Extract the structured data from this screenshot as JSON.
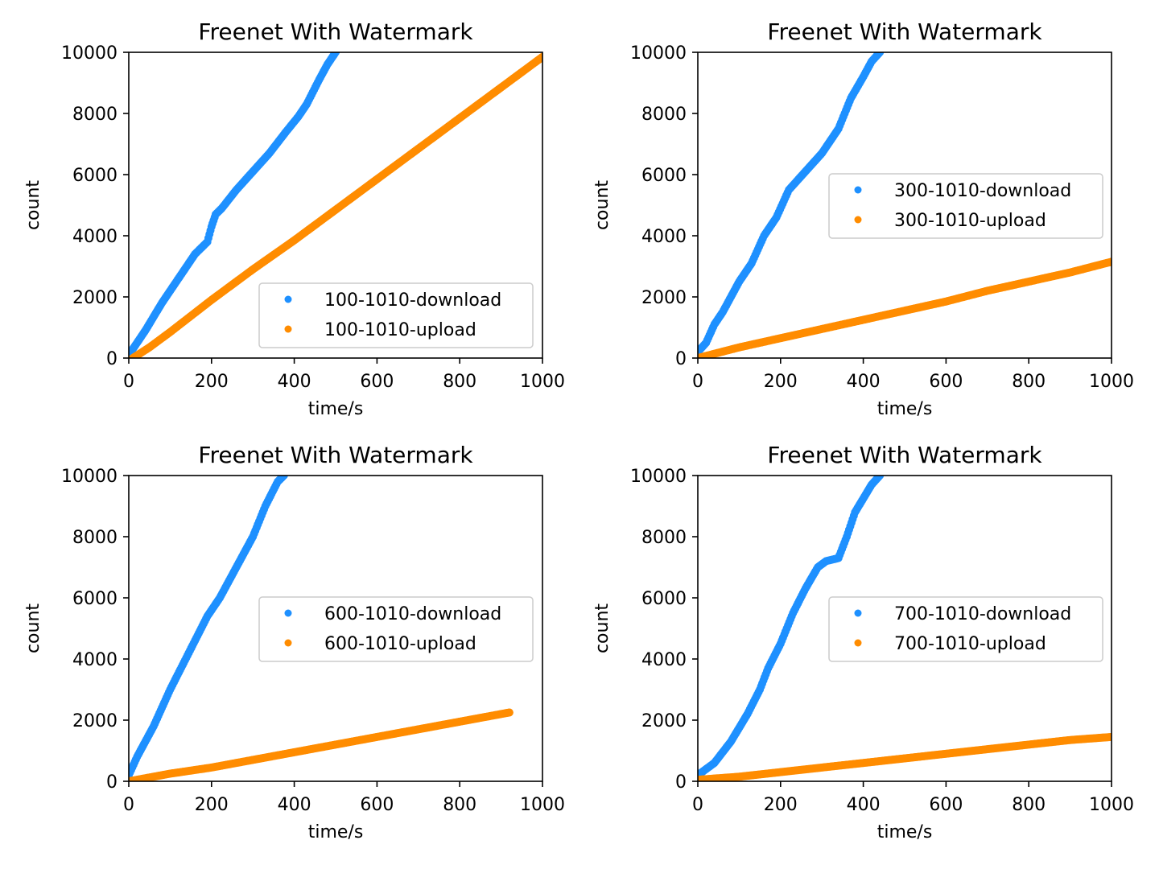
{
  "colors": {
    "download": "#1e90ff",
    "upload": "#ff8c00"
  },
  "chart_data": [
    {
      "type": "scatter",
      "title": "Freenet With Watermark",
      "xlabel": "time/s",
      "ylabel": "count",
      "xlim": [
        0,
        1000
      ],
      "ylim": [
        0,
        10000
      ],
      "xticks": [
        "0",
        "200",
        "400",
        "600",
        "800",
        "1000"
      ],
      "yticks": [
        "0",
        "2000",
        "4000",
        "6000",
        "8000",
        "10000"
      ],
      "legend_position": "lower-right",
      "series": [
        {
          "name": "100-1010-download",
          "color": "#1e90ff",
          "x": [
            5,
            20,
            40,
            60,
            80,
            100,
            130,
            160,
            190,
            200,
            210,
            225,
            260,
            300,
            340,
            380,
            410,
            430,
            460,
            480,
            500
          ],
          "y": [
            200,
            500,
            900,
            1350,
            1800,
            2200,
            2800,
            3400,
            3800,
            4300,
            4700,
            4900,
            5500,
            6100,
            6700,
            7400,
            7900,
            8300,
            9100,
            9600,
            10000
          ]
        },
        {
          "name": "100-1010-upload",
          "color": "#ff8c00",
          "x": [
            10,
            50,
            100,
            200,
            300,
            400,
            500,
            600,
            700,
            800,
            900,
            1000
          ],
          "y": [
            0,
            350,
            850,
            1900,
            2900,
            3850,
            4850,
            5850,
            6850,
            7850,
            8850,
            9850
          ]
        }
      ]
    },
    {
      "type": "scatter",
      "title": "Freenet With Watermark",
      "xlabel": "time/s",
      "ylabel": "count",
      "xlim": [
        0,
        1000
      ],
      "ylim": [
        0,
        10000
      ],
      "xticks": [
        "0",
        "200",
        "400",
        "600",
        "800",
        "1000"
      ],
      "yticks": [
        "0",
        "2000",
        "4000",
        "6000",
        "8000",
        "10000"
      ],
      "legend_position": "center-right",
      "series": [
        {
          "name": "300-1010-download",
          "color": "#1e90ff",
          "x": [
            0,
            20,
            40,
            60,
            80,
            100,
            130,
            160,
            190,
            220,
            260,
            300,
            340,
            370,
            400,
            420,
            440
          ],
          "y": [
            200,
            500,
            1100,
            1500,
            2000,
            2500,
            3100,
            4000,
            4600,
            5500,
            6100,
            6700,
            7500,
            8500,
            9200,
            9700,
            10000
          ]
        },
        {
          "name": "300-1010-upload",
          "color": "#ff8c00",
          "x": [
            0,
            100,
            200,
            300,
            400,
            500,
            600,
            700,
            800,
            900,
            1000
          ],
          "y": [
            0,
            350,
            650,
            950,
            1250,
            1550,
            1850,
            2200,
            2500,
            2800,
            3150
          ]
        }
      ]
    },
    {
      "type": "scatter",
      "title": "Freenet With Watermark",
      "xlabel": "time/s",
      "ylabel": "count",
      "xlim": [
        0,
        1000
      ],
      "ylim": [
        0,
        10000
      ],
      "xticks": [
        "0",
        "200",
        "400",
        "600",
        "800",
        "1000"
      ],
      "yticks": [
        "0",
        "2000",
        "4000",
        "6000",
        "8000",
        "10000"
      ],
      "legend_position": "center-right",
      "series": [
        {
          "name": "600-1010-download",
          "color": "#1e90ff",
          "x": [
            0,
            20,
            40,
            60,
            80,
            100,
            130,
            160,
            190,
            220,
            260,
            300,
            330,
            360,
            375
          ],
          "y": [
            200,
            800,
            1300,
            1800,
            2400,
            3000,
            3800,
            4600,
            5400,
            6000,
            7000,
            8000,
            9000,
            9800,
            10000
          ]
        },
        {
          "name": "600-1010-upload",
          "color": "#ff8c00",
          "x": [
            0,
            100,
            200,
            300,
            400,
            500,
            600,
            700,
            800,
            900,
            920
          ],
          "y": [
            0,
            250,
            450,
            700,
            950,
            1200,
            1450,
            1700,
            1950,
            2200,
            2250
          ]
        }
      ]
    },
    {
      "type": "scatter",
      "title": "Freenet With Watermark",
      "xlabel": "time/s",
      "ylabel": "count",
      "xlim": [
        0,
        1000
      ],
      "ylim": [
        0,
        10000
      ],
      "xticks": [
        "0",
        "200",
        "400",
        "600",
        "800",
        "1000"
      ],
      "yticks": [
        "0",
        "2000",
        "4000",
        "6000",
        "8000",
        "10000"
      ],
      "legend_position": "center-right",
      "series": [
        {
          "name": "700-1010-download",
          "color": "#1e90ff",
          "x": [
            0,
            40,
            80,
            120,
            150,
            170,
            200,
            230,
            260,
            290,
            310,
            340,
            360,
            380,
            420,
            440
          ],
          "y": [
            200,
            600,
            1300,
            2200,
            3000,
            3700,
            4500,
            5500,
            6300,
            7000,
            7200,
            7300,
            8000,
            8800,
            9700,
            10000
          ]
        },
        {
          "name": "700-1010-upload",
          "color": "#ff8c00",
          "x": [
            0,
            100,
            200,
            300,
            400,
            500,
            600,
            700,
            800,
            900,
            1000
          ],
          "y": [
            50,
            150,
            300,
            450,
            600,
            750,
            900,
            1050,
            1200,
            1350,
            1450
          ]
        }
      ]
    }
  ]
}
